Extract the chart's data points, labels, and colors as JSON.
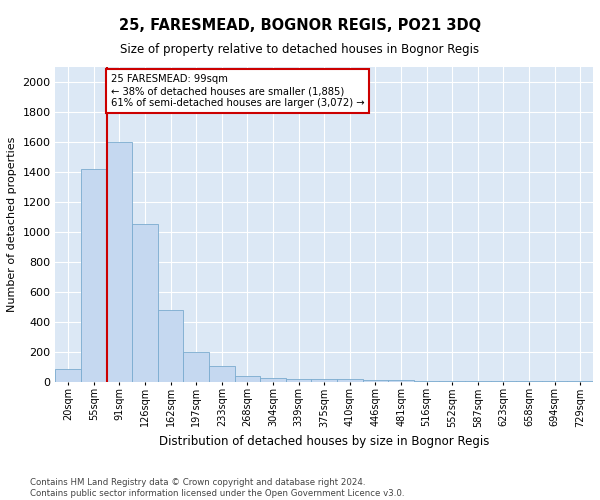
{
  "title": "25, FARESMEAD, BOGNOR REGIS, PO21 3DQ",
  "subtitle": "Size of property relative to detached houses in Bognor Regis",
  "xlabel": "Distribution of detached houses by size in Bognor Regis",
  "ylabel": "Number of detached properties",
  "footer_line1": "Contains HM Land Registry data © Crown copyright and database right 2024.",
  "footer_line2": "Contains public sector information licensed under the Open Government Licence v3.0.",
  "bar_labels": [
    "20sqm",
    "55sqm",
    "91sqm",
    "126sqm",
    "162sqm",
    "197sqm",
    "233sqm",
    "268sqm",
    "304sqm",
    "339sqm",
    "375sqm",
    "410sqm",
    "446sqm",
    "481sqm",
    "516sqm",
    "552sqm",
    "587sqm",
    "623sqm",
    "658sqm",
    "694sqm",
    "729sqm"
  ],
  "bar_values": [
    85,
    1420,
    1600,
    1050,
    475,
    200,
    105,
    35,
    25,
    18,
    15,
    15,
    12,
    8,
    5,
    2,
    2,
    2,
    2,
    2,
    2
  ],
  "bar_color": "#c5d8f0",
  "bar_edge_color": "#7aabcf",
  "bg_color": "#dce8f5",
  "grid_color": "#ffffff",
  "property_line_color": "#cc0000",
  "annotation_line1": "25 FARESMEAD: 99sqm",
  "annotation_line2": "← 38% of detached houses are smaller (1,885)",
  "annotation_line3": "61% of semi-detached houses are larger (3,072) →",
  "annotation_box_color": "#cc0000",
  "ylim": [
    0,
    2100
  ],
  "yticks": [
    0,
    200,
    400,
    600,
    800,
    1000,
    1200,
    1400,
    1600,
    1800,
    2000
  ]
}
